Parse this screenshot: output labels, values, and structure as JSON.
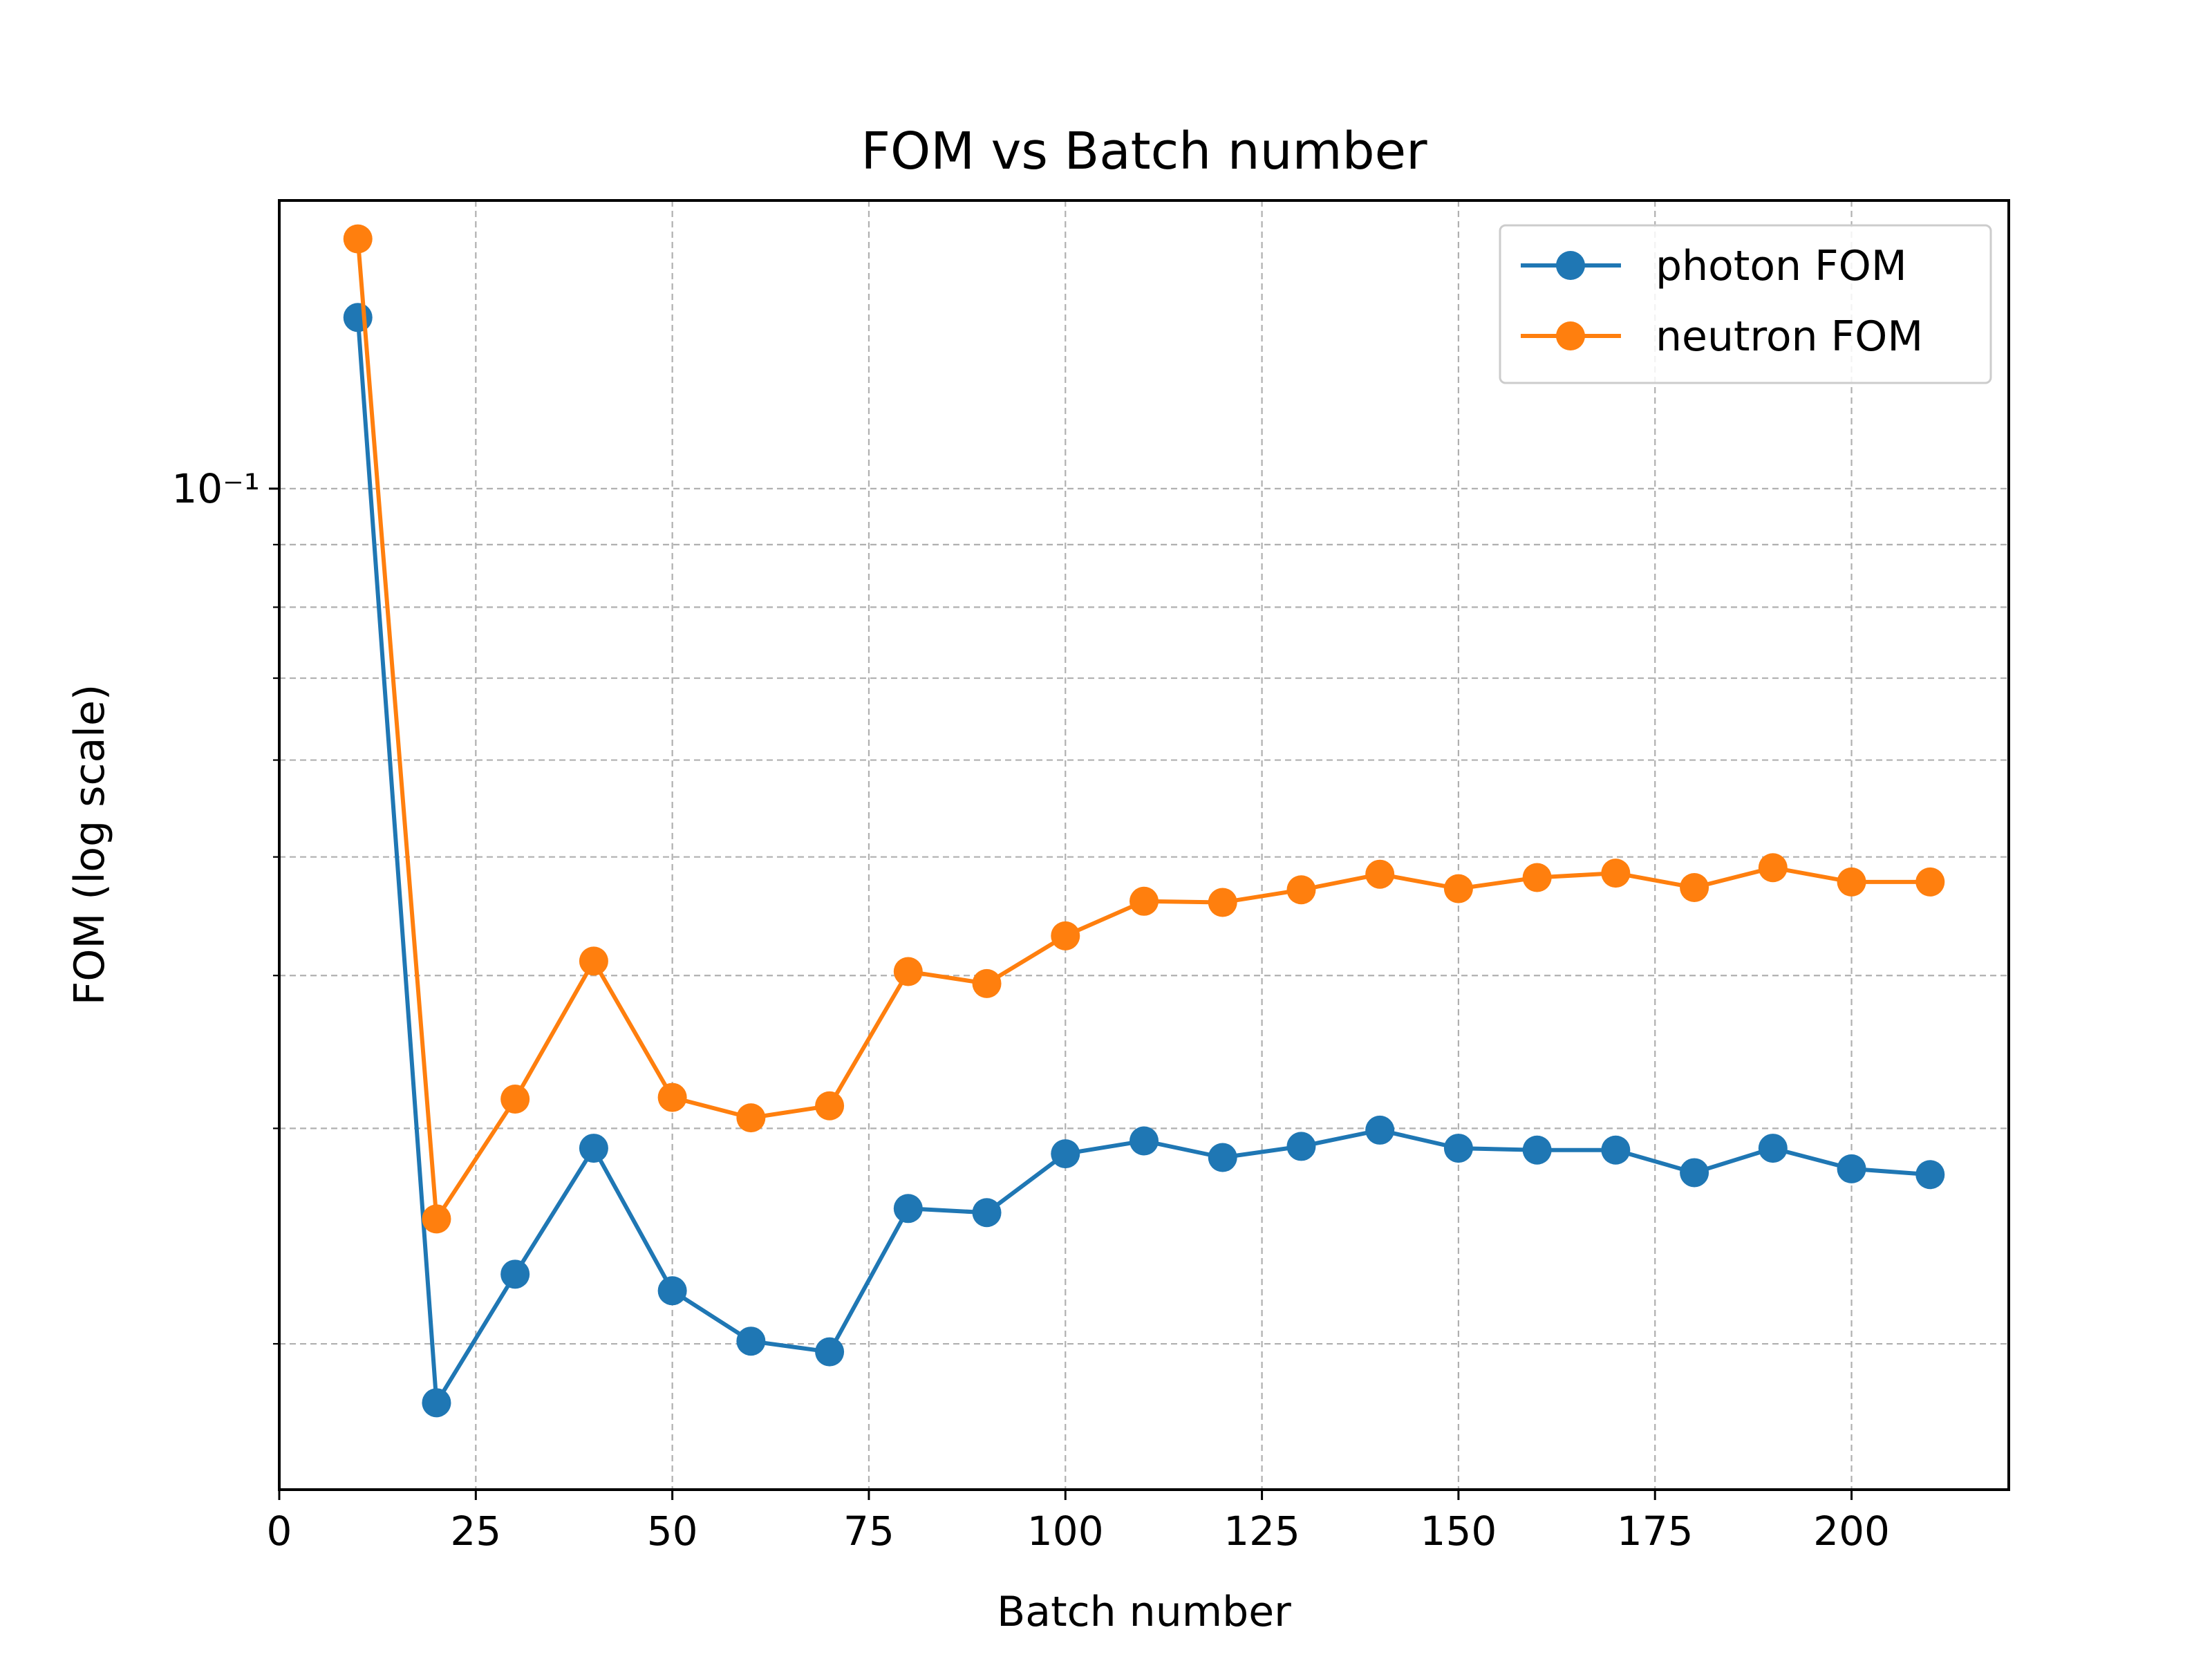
{
  "chart_data": {
    "type": "line",
    "title": "FOM vs Batch number",
    "xlabel": "Batch number",
    "ylabel": "FOM (log scale)",
    "yscale": "log",
    "xlim": [
      0,
      220
    ],
    "ylim": [
      0.0152,
      0.172
    ],
    "grid": true,
    "legend_position": "top-right",
    "x_ticks": [
      0,
      25,
      50,
      75,
      100,
      125,
      150,
      175,
      200
    ],
    "x_tick_labels": [
      "0",
      "25",
      "50",
      "75",
      "100",
      "125",
      "150",
      "175",
      "200"
    ],
    "y_major_ticks": [
      0.1
    ],
    "y_major_tick_labels": [
      "10⁻¹"
    ],
    "y_minor_ticks": [
      0.02,
      0.03,
      0.04,
      0.05,
      0.06,
      0.07,
      0.08,
      0.09
    ],
    "x": [
      10,
      20,
      30,
      40,
      50,
      60,
      70,
      80,
      90,
      100,
      110,
      120,
      130,
      140,
      150,
      160,
      170,
      180,
      190,
      200,
      210
    ],
    "series": [
      {
        "name": "photon FOM",
        "color": "#1f77b4",
        "marker": "circle",
        "values": [
          0.138,
          0.0179,
          0.0228,
          0.0289,
          0.0221,
          0.0201,
          0.0197,
          0.0258,
          0.0256,
          0.0286,
          0.0293,
          0.0284,
          0.029,
          0.0299,
          0.0289,
          0.0288,
          0.0288,
          0.0276,
          0.0289,
          0.0278,
          0.0275
        ]
      },
      {
        "name": "neutron FOM",
        "color": "#ff7f0e",
        "marker": "circle",
        "values": [
          0.16,
          0.0253,
          0.0317,
          0.0411,
          0.0318,
          0.0306,
          0.0313,
          0.0403,
          0.0394,
          0.0431,
          0.046,
          0.0459,
          0.047,
          0.0484,
          0.0471,
          0.0481,
          0.0485,
          0.0472,
          0.049,
          0.0477,
          0.0477
        ]
      }
    ]
  }
}
